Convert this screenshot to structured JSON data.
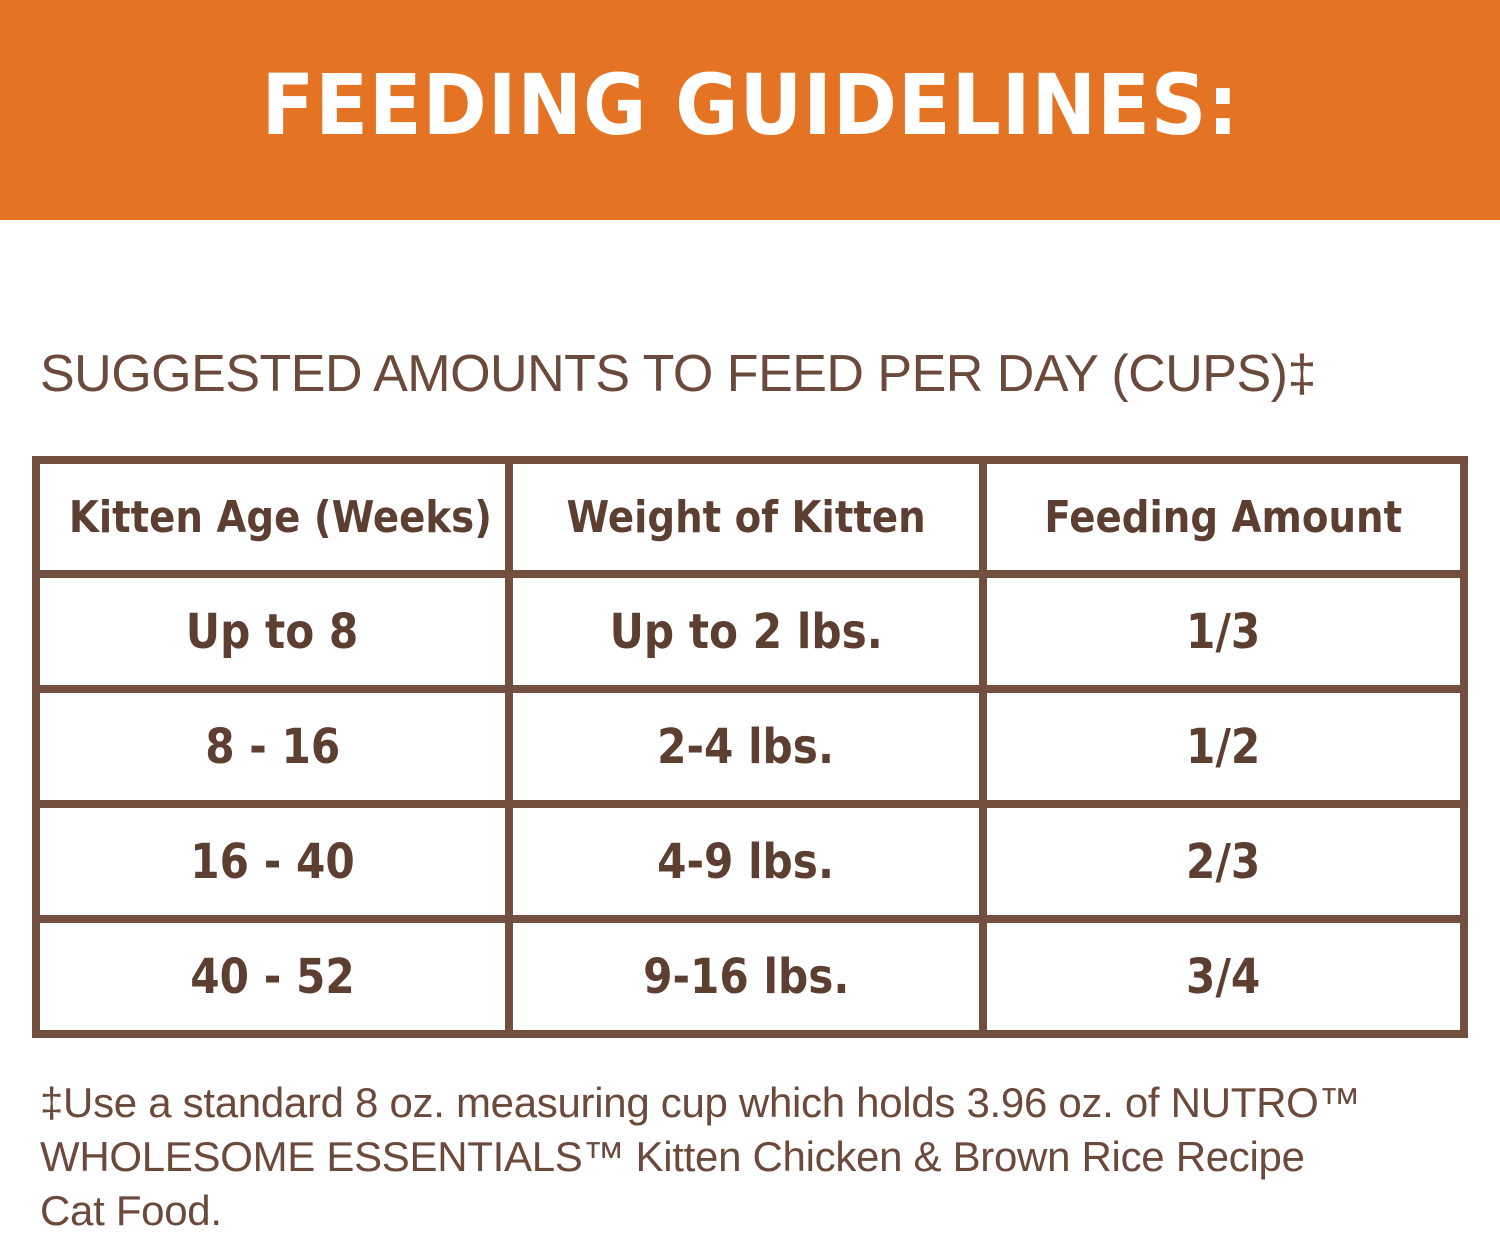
{
  "banner": {
    "title": "FEEDING GUIDELINES:",
    "color": "#e57324"
  },
  "subtitle": "SUGGESTED AMOUNTS TO FEED PER DAY (CUPS)‡",
  "table": {
    "headers": [
      "Kitten Age (Weeks)",
      "Weight of Kitten",
      "Feeding Amount"
    ],
    "rows": [
      [
        "Up to 8",
        "Up to 2 lbs.",
        "1/3"
      ],
      [
        "8 - 16",
        "2-4 lbs.",
        "1/2"
      ],
      [
        "16 - 40",
        "4-9 lbs.",
        "2/3"
      ],
      [
        "40 - 52",
        "9-16 lbs.",
        "3/4"
      ]
    ],
    "border_color": "#734f40",
    "text_color": "#5d3f32"
  },
  "footnote": {
    "lines": [
      "‡Use a standard 8 oz. measuring cup which holds 3.96 oz. of NUTRO™",
      "WHOLESOME ESSENTIALS™ Kitten Chicken & Brown Rice Recipe",
      "Cat Food."
    ]
  }
}
